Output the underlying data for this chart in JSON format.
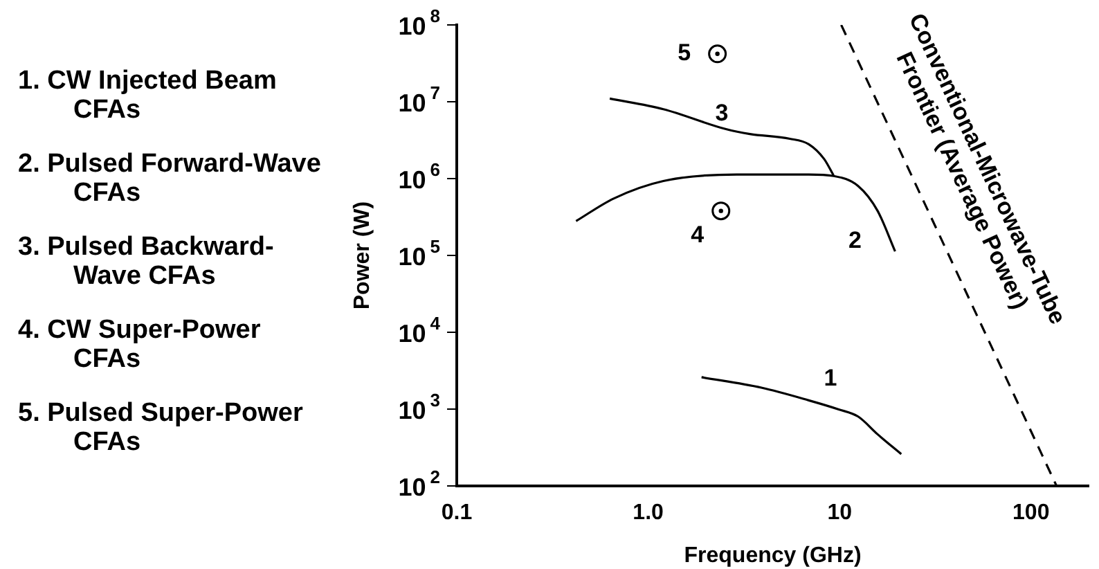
{
  "chart_data": {
    "type": "line",
    "xlabel": "Frequency (GHz)",
    "ylabel": "Power (W)",
    "log": "xy",
    "grid": false,
    "legend": false,
    "marker": "none",
    "line_style": "solid",
    "xlim": [
      0.1,
      200
    ],
    "xticks": [
      {
        "value": 0.1,
        "label": "0.1"
      },
      {
        "value": 1,
        "label": "1.0"
      },
      {
        "value": 10,
        "label": "10"
      },
      {
        "value": 100,
        "label": "100"
      }
    ],
    "ylim": [
      100,
      100000000
    ],
    "yticks": [
      {
        "value": 100,
        "label": "10$^{2}$"
      },
      {
        "value": 1000,
        "label": "10$^{3}$"
      },
      {
        "value": 10000,
        "label": "10$^{4}$"
      },
      {
        "value": 100000,
        "label": "10$^{5}$"
      },
      {
        "value": 1000000,
        "label": "10$^{6}$"
      },
      {
        "value": 10000000,
        "label": "10$^{7}$"
      },
      {
        "value": 100000000,
        "label": "10$^{8}$"
      }
    ],
    "series": [
      {
        "name": "1",
        "color": "#000000",
        "x": [
          1.9,
          3.9,
          6.9,
          9.9,
          12.5,
          15.8,
          21
        ],
        "values": [
          2600,
          1900,
          1300,
          990,
          800,
          470,
          260
        ]
      },
      {
        "name": "2",
        "color": "#000000",
        "x": [
          0.42,
          0.66,
          1.2,
          2.9,
          6.9,
          9.3,
          12.5,
          15.8,
          19.5
        ],
        "values": [
          280000,
          550000,
          930000,
          1130000,
          1130000,
          1080000,
          800000,
          380000,
          113000
        ]
      },
      {
        "name": "3",
        "color": "#000000",
        "x": [
          0.63,
          1.2,
          2.55,
          3.4,
          5.5,
          6.9,
          8.3,
          9.3
        ],
        "values": [
          11000000,
          8000000,
          4400000,
          3800000,
          3300000,
          2800000,
          1800000,
          1100000
        ]
      },
      {
        "name": "4",
        "type": "scatter",
        "marker": "circle",
        "color": "#000000",
        "x": [
          2.4
        ],
        "values": [
          380000
        ]
      },
      {
        "name": "5",
        "type": "scatter",
        "marker": "circle",
        "color": "#000000",
        "x": [
          2.3
        ],
        "values": [
          42000000
        ]
      },
      {
        "name": "Conventional-Microwave-Tube Frontier (Average Power)",
        "color": "#000000",
        "line_style": "dashed",
        "x": [
          10.2,
          136
        ],
        "values": [
          100000000,
          100
        ]
      }
    ],
    "annotations": [
      "1. CW Injected Beam CFAs",
      "2. Pulsed Forward-Wave CFAs",
      "3. Pulsed Backward-Wave CFAs",
      "4. CW Super-Power CFAs",
      "5. Pulsed Super-Power CFAs"
    ]
  }
}
